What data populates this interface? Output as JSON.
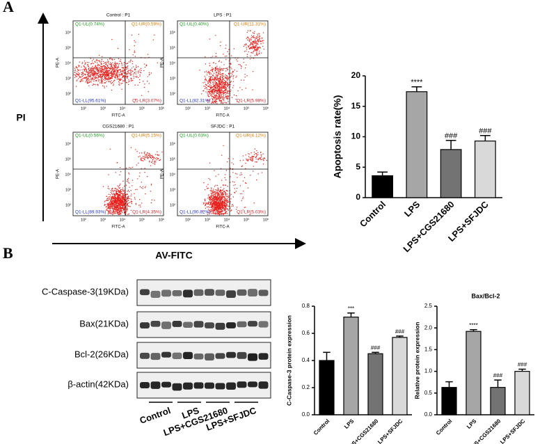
{
  "panels": {
    "a": "A",
    "b": "B"
  },
  "flow": {
    "y_axis": "PI",
    "x_axis": "AV-FITC",
    "x_label": "FITC-A",
    "y_label": "PE-A",
    "ticks": [
      "10²",
      "10³",
      "10⁴",
      "10⁵",
      "10⁶"
    ],
    "plots": [
      {
        "title": "Control : P1",
        "quadrants": [
          "Q1-UL(0.74%)",
          "Q1-UR(0.59%)",
          "Q1-LL(95.61%)",
          "Q1-LR(3.07%)"
        ]
      },
      {
        "title": "LPS : P1",
        "quadrants": [
          "Q1-UL(0.40%)",
          "Q1-UR(11.31%)",
          "Q1-LL(82.31%)",
          "Q1-LR(5.98%)"
        ]
      },
      {
        "title": "CGS21680 : P1",
        "quadrants": [
          "Q1-UL(0.56%)",
          "Q1-UR(5.15%)",
          "Q1-LL(89.93%)",
          "Q1-LR(4.35%)"
        ]
      },
      {
        "title": "SFJDC : P1",
        "quadrants": [
          "Q1-UL(0.03%)",
          "Q1-UR(4.12%)",
          "Q1-LL(90.82%)",
          "Q1-LR(5.03%)"
        ]
      }
    ]
  },
  "blot": {
    "labels": [
      "C-Caspase-3(19KDa)",
      "Bax(21KDa)",
      "Bcl-2(26KDa)",
      "β-actin(42KDa)"
    ],
    "groups": [
      "Control",
      "LPS",
      "LPS+CGS21680",
      "LPS+SFJDC"
    ]
  },
  "chart_data": [
    {
      "type": "bar",
      "y_label": "Apoptosis rate(%)",
      "categories": [
        "Control",
        "LPS",
        "LPS+CGS21680",
        "LPS+SFJDC"
      ],
      "values": [
        3.6,
        17.4,
        7.9,
        9.3
      ],
      "errors": [
        0.6,
        0.8,
        1.5,
        0.9
      ],
      "annotations": [
        null,
        "****",
        "###",
        "###"
      ],
      "colors": [
        "#000000",
        "#a6a6a6",
        "#737373",
        "#d9d9d9"
      ],
      "ylim": [
        0,
        20
      ],
      "yticks": [
        0,
        5,
        10,
        15,
        20
      ]
    },
    {
      "type": "bar",
      "y_label": "C-Caspase-3 protein expression",
      "categories": [
        "Control",
        "LPS",
        "LPS+CGS21680",
        "LPS+SFJDC"
      ],
      "values": [
        0.4,
        0.72,
        0.45,
        0.57
      ],
      "errors": [
        0.06,
        0.03,
        0.01,
        0.01
      ],
      "annotations": [
        null,
        "***",
        "###",
        "###"
      ],
      "colors": [
        "#000000",
        "#a6a6a6",
        "#737373",
        "#d9d9d9"
      ],
      "ylim": [
        0,
        0.8
      ],
      "yticks": [
        {
          "value": 0,
          "label": "0.0"
        },
        0.2,
        0.4,
        0.6,
        0.8
      ]
    },
    {
      "type": "bar",
      "title": "Bax/Bcl-2",
      "y_label": "Relative protein expression",
      "categories": [
        "Control",
        "LPS",
        "LPS+CGS21680",
        "LPS+SFJDC"
      ],
      "values": [
        0.63,
        1.92,
        0.63,
        1.0
      ],
      "errors": [
        0.13,
        0.04,
        0.17,
        0.05
      ],
      "annotations": [
        null,
        "****",
        "###",
        "###"
      ],
      "colors": [
        "#000000",
        "#a6a6a6",
        "#737373",
        "#d9d9d9"
      ],
      "ylim": [
        0,
        2.5
      ],
      "yticks": [
        {
          "value": 0,
          "label": "0.0"
        },
        0.5,
        {
          "value": 1,
          "label": "1.0"
        },
        1.5,
        {
          "value": 2,
          "label": "2.0"
        },
        2.5
      ]
    }
  ]
}
